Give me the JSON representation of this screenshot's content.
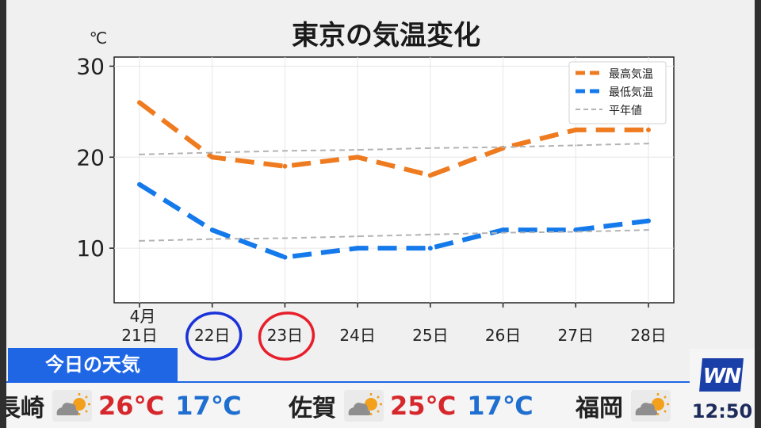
{
  "chart_data": {
    "type": "line",
    "title": "東京の気温変化",
    "yunit": "℃",
    "ylim": [
      4,
      31
    ],
    "yticks": [
      10,
      20,
      30
    ],
    "x_month_label": "4月",
    "categories": [
      "21日",
      "22日",
      "23日",
      "24日",
      "25日",
      "26日",
      "27日",
      "28日"
    ],
    "series": [
      {
        "name": "最高気温",
        "color": "#ee7b1f",
        "style": "dashed-thick",
        "values": [
          26,
          20,
          19,
          20,
          18,
          21,
          23,
          23
        ]
      },
      {
        "name": "最低気温",
        "color": "#1479ea",
        "style": "dashed-thick",
        "values": [
          17,
          12,
          9,
          10,
          10,
          12,
          12,
          13
        ]
      },
      {
        "name": "平年値",
        "color": "#b3b3b3",
        "style": "dashed-thin",
        "values": [
          20.3,
          20.5,
          20.7,
          20.8,
          21.0,
          21.1,
          21.3,
          21.5
        ]
      },
      {
        "name": "平年値",
        "color": "#b3b3b3",
        "style": "dashed-thin",
        "legend": false,
        "values": [
          10.8,
          11.0,
          11.1,
          11.3,
          11.5,
          11.7,
          11.8,
          12.0
        ]
      }
    ],
    "legend": "top-right",
    "grid": true,
    "highlights": [
      {
        "category": "22日",
        "color": "#1a32d8",
        "type": "hand-drawn circle"
      },
      {
        "category": "23日",
        "color": "#e81f2b",
        "type": "hand-drawn circle"
      }
    ]
  },
  "ticker": {
    "title": "今日の天気",
    "cities": [
      {
        "name": "長崎",
        "icon": "partly-cloudy-sun-icon",
        "high": "26℃",
        "low": "17℃"
      },
      {
        "name": "佐賀",
        "icon": "partly-cloudy-sun-icon",
        "high": "25℃",
        "low": "17℃"
      },
      {
        "name": "福岡",
        "icon": "partly-cloudy-sun-icon"
      }
    ]
  },
  "logo": "WN",
  "clock": "12:50",
  "colors": {
    "banner": "#1f66e5",
    "high_temp": "#d6282c",
    "low_temp": "#1f6fd0",
    "logo_blue": "#1b3fa8"
  }
}
